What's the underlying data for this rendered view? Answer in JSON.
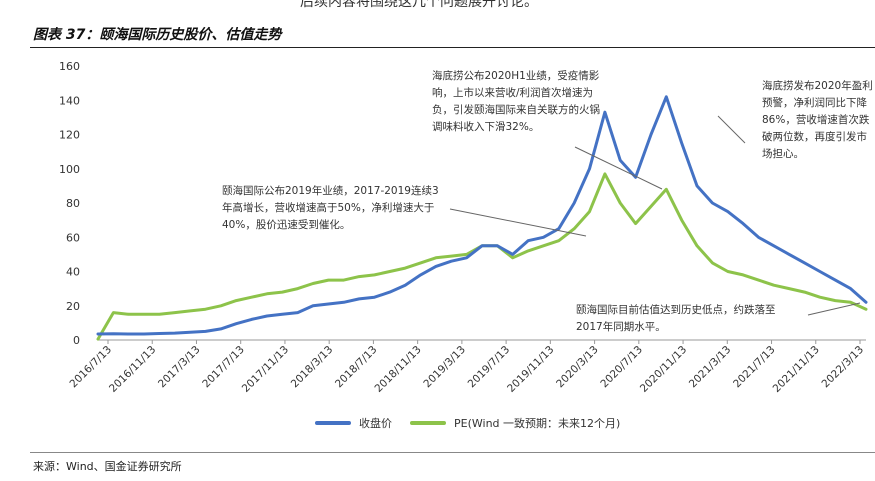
{
  "header": {
    "partial_text": "后续内容将围绕这几个问题展开讨论。",
    "figure_title": "图表 37：颐海国际历史股价、估值走势"
  },
  "source": "来源：Wind、国金证券研究所",
  "annotations": [
    "海底捞公布2020H1业绩，受疫情影响，上市以来营收/利润首次增速为负，引发颐海国际来自关联方的火锅调味料收入下滑32%。",
    "海底捞发布2020年盈利预警，净利润同比下降86%，营收增速首次跌破两位数，再度引发市场担心。",
    "颐海国际公布2019年业绩，2017-2019连续3年高增长，营收增速高于50%，净利增速大于40%，股价迅速受到催化。",
    "颐海国际目前估值达到历史低点，约跌落至2017年同期水平。"
  ],
  "colors": {
    "price": "#4472C4",
    "pe": "#8DC34A"
  },
  "chart_data": {
    "type": "line",
    "title": "",
    "xlabel": "",
    "ylabel": "",
    "ylim": [
      0,
      160
    ],
    "yticks": [
      0,
      20,
      40,
      60,
      80,
      100,
      120,
      140,
      160
    ],
    "x_tick_labels": [
      "2016/7/13",
      "2016/11/13",
      "2017/3/13",
      "2017/7/13",
      "2017/11/13",
      "2018/3/13",
      "2018/7/13",
      "2018/11/13",
      "2019/3/13",
      "2019/7/13",
      "2019/11/13",
      "2020/3/13",
      "2020/7/13",
      "2020/11/13",
      "2021/3/13",
      "2021/7/13",
      "2021/11/13",
      "2022/3/13"
    ],
    "grid": false,
    "legend": "bottom",
    "series": [
      {
        "name": "收盘价",
        "values": [
          3.5,
          3.6,
          3.5,
          3.5,
          3.8,
          4.0,
          4.5,
          5.0,
          6.5,
          9.5,
          12,
          14,
          15,
          16,
          20,
          21,
          22,
          24,
          25,
          28,
          32,
          38,
          43,
          46,
          48,
          55,
          55,
          50,
          58,
          60,
          65,
          80,
          100,
          133,
          105,
          95,
          120,
          142,
          115,
          90,
          80,
          75,
          68,
          60,
          55,
          50,
          45,
          40,
          35,
          30,
          22
        ]
      },
      {
        "name": "PE(Wind 一致预期：未来12个月)",
        "values": [
          0.5,
          16,
          15,
          15,
          15,
          16,
          17,
          18,
          20,
          23,
          25,
          27,
          28,
          30,
          33,
          35,
          35,
          37,
          38,
          40,
          42,
          45,
          48,
          49,
          50,
          55,
          55,
          48,
          52,
          55,
          58,
          65,
          75,
          97,
          80,
          68,
          78,
          88,
          70,
          55,
          45,
          40,
          38,
          35,
          32,
          30,
          28,
          25,
          23,
          22,
          18
        ]
      }
    ]
  }
}
